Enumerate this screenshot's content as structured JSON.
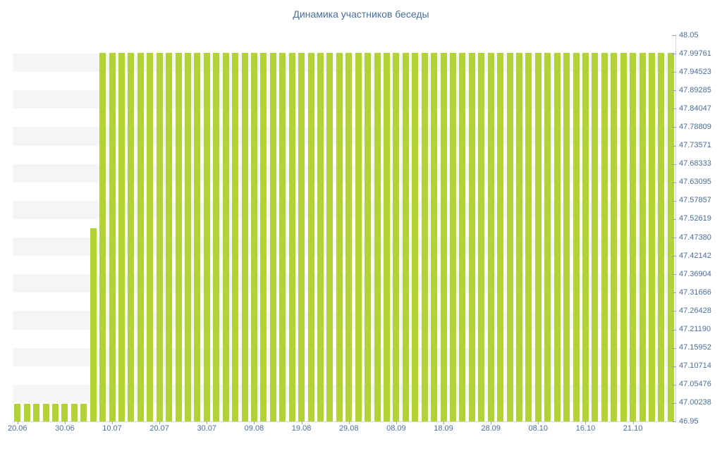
{
  "chart_data": {
    "type": "bar",
    "title": "Динамика участников беседы",
    "xlabel": "",
    "ylabel": "",
    "ylim": [
      46.95,
      48.05
    ],
    "grid": "alternating-horizontal-bands",
    "legend": "none",
    "y_axis_side": "right",
    "y_ticks": [
      "48.05",
      "47.99761",
      "47.94523",
      "47.89285",
      "47.84047",
      "47.78809",
      "47.73571",
      "47.68333",
      "47.63095",
      "47.57857",
      "47.52619",
      "47.47380",
      "47.42142",
      "47.36904",
      "47.31666",
      "47.26428",
      "47.21190",
      "47.15952",
      "47.10714",
      "47.05476",
      "47.00238",
      "46.95"
    ],
    "x_tick_labels": [
      "20.06",
      "30.06",
      "10.07",
      "20.07",
      "30.07",
      "09.08",
      "19.08",
      "29.08",
      "08.09",
      "18.09",
      "28.09",
      "08.10",
      "16.10",
      "21.10"
    ],
    "x_label_every": 5,
    "values": [
      47,
      47,
      47,
      47,
      47,
      47,
      47,
      47,
      47.5,
      48,
      48,
      48,
      48,
      48,
      48,
      48,
      48,
      48,
      48,
      48,
      48,
      48,
      48,
      48,
      48,
      48,
      48,
      48,
      48,
      48,
      48,
      48,
      48,
      48,
      48,
      48,
      48,
      48,
      48,
      48,
      48,
      48,
      48,
      48,
      48,
      48,
      48,
      48,
      48,
      48,
      48,
      48,
      48,
      48,
      48,
      48,
      48,
      48,
      48,
      48,
      48,
      48,
      48,
      48,
      48,
      48,
      48,
      48,
      48,
      48
    ],
    "bar_color": "#b2d235",
    "band_color": "#f5f5f5",
    "label_color": "#4a6e9c",
    "title_color": "#4a6e9c",
    "axis_line_color": "#d4d8dd",
    "tick_mark_color": "#8fa3bd"
  }
}
